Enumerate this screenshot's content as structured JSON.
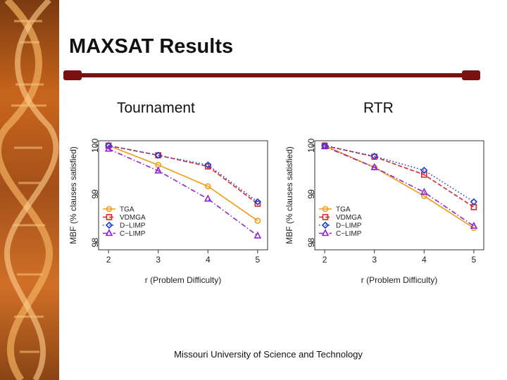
{
  "slide": {
    "title": "MAXSAT Results",
    "footer": "Missouri University of Science and Technology",
    "colors": {
      "title_rule": "#7a1212",
      "sidebar": "#b5591a"
    }
  },
  "chart_data": [
    {
      "type": "line",
      "title": "Tournament",
      "xlabel": "r (Problem Difficulty)",
      "ylabel": "MBF (% clauses satisfied)",
      "x": [
        2,
        3,
        4,
        5
      ],
      "xticks": [
        "2",
        "3",
        "4",
        "5"
      ],
      "yticks": [
        "98",
        "99",
        "100"
      ],
      "xlim": [
        1.8,
        5.2
      ],
      "ylim": [
        97.85,
        100.1
      ],
      "legend_position": "bottom-left",
      "series": [
        {
          "name": "TGA",
          "color": "#f39c12",
          "marker": "circle",
          "dash": "solid",
          "values": [
            100.0,
            99.6,
            99.16,
            98.45
          ]
        },
        {
          "name": "VDMGA",
          "color": "#d62728",
          "marker": "square",
          "dash": "dashed",
          "values": [
            100.0,
            99.8,
            99.57,
            98.8
          ]
        },
        {
          "name": "D−LIMP",
          "color": "#1f3ad6",
          "marker": "diamond",
          "dash": "dotted",
          "values": [
            100.0,
            99.8,
            99.6,
            98.84
          ]
        },
        {
          "name": "C−LIMP",
          "color": "#8e24d6",
          "marker": "triangle",
          "dash": "dashdot",
          "values": [
            99.93,
            99.48,
            98.9,
            98.14
          ]
        }
      ]
    },
    {
      "type": "line",
      "title": "RTR",
      "xlabel": "r (Problem Difficulty)",
      "ylabel": "MBF (% clauses satisfied)",
      "x": [
        2,
        3,
        4,
        5
      ],
      "xticks": [
        "2",
        "3",
        "4",
        "5"
      ],
      "yticks": [
        "98",
        "99",
        "100"
      ],
      "xlim": [
        1.8,
        5.2
      ],
      "ylim": [
        97.85,
        100.1
      ],
      "legend_position": "bottom-left",
      "series": [
        {
          "name": "TGA",
          "color": "#f39c12",
          "marker": "circle",
          "dash": "solid",
          "values": [
            100.0,
            99.55,
            98.96,
            98.3
          ]
        },
        {
          "name": "VDMGA",
          "color": "#d62728",
          "marker": "square",
          "dash": "dashed",
          "values": [
            100.0,
            99.77,
            99.4,
            98.73
          ]
        },
        {
          "name": "D−LIMP",
          "color": "#1f3ad6",
          "marker": "diamond",
          "dash": "dotted",
          "values": [
            100.0,
            99.78,
            99.49,
            98.84
          ]
        },
        {
          "name": "C−LIMP",
          "color": "#8e24d6",
          "marker": "triangle",
          "dash": "dashdot",
          "values": [
            99.98,
            99.55,
            99.04,
            98.34
          ]
        }
      ]
    }
  ]
}
